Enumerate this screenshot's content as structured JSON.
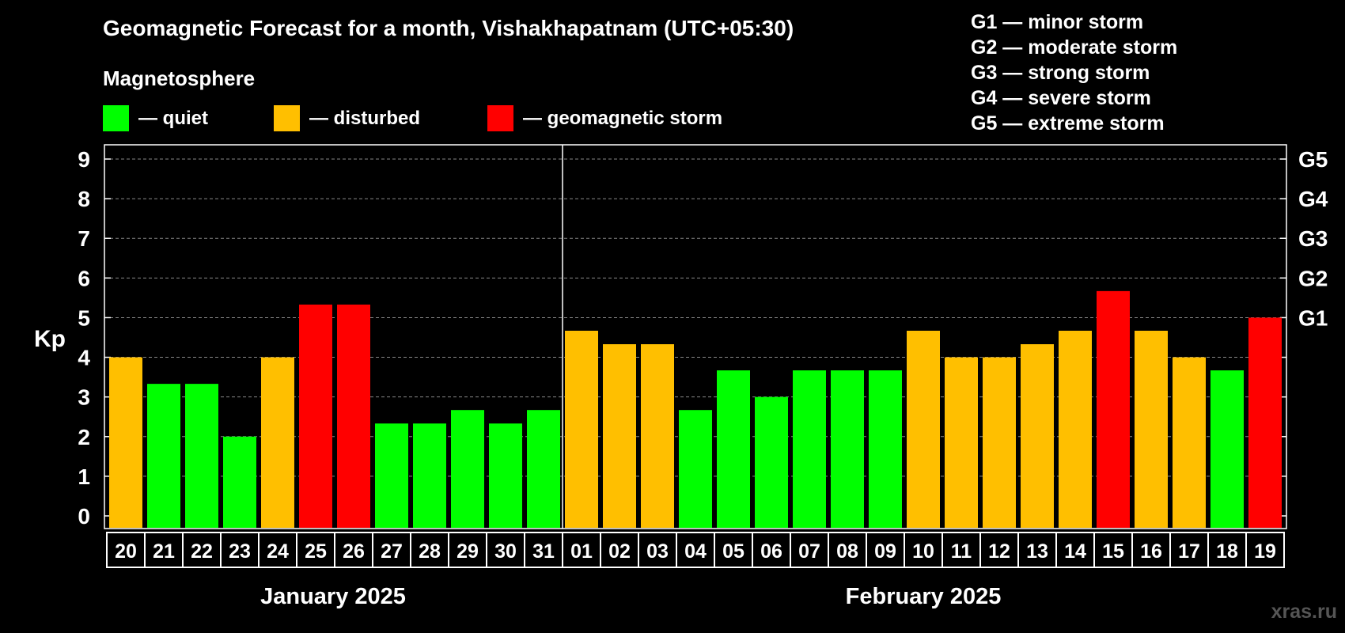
{
  "title": "Geomagnetic Forecast for a month, Vishakhapatnam (UTC+05:30)",
  "magnetosphere_label": "Magnetosphere",
  "legend": [
    {
      "label": "— quiet",
      "color": "#00ff00"
    },
    {
      "label": "— disturbed",
      "color": "#ffbf00"
    },
    {
      "label": "— geomagnetic storm",
      "color": "#ff0000"
    }
  ],
  "storm_scale": [
    "G1 — minor storm",
    "G2 — moderate storm",
    "G3 — strong storm",
    "G4 — severe storm",
    "G5 — extreme storm"
  ],
  "watermark": "xras.ru",
  "chart_data": {
    "type": "bar",
    "ylabel": "Kp",
    "ylim": [
      0,
      9
    ],
    "yticks": [
      "0",
      "1",
      "2",
      "3",
      "4",
      "5",
      "6",
      "7",
      "8",
      "9"
    ],
    "right_axis_labels": [
      {
        "value": 5,
        "label": "G1"
      },
      {
        "value": 6,
        "label": "G2"
      },
      {
        "value": 7,
        "label": "G3"
      },
      {
        "value": 8,
        "label": "G4"
      },
      {
        "value": 9,
        "label": "G5"
      }
    ],
    "grid": "dashed horizontal",
    "month_labels": [
      "January 2025",
      "February 2025"
    ],
    "categories": [
      "20",
      "21",
      "22",
      "23",
      "24",
      "25",
      "26",
      "27",
      "28",
      "29",
      "30",
      "31",
      "01",
      "02",
      "03",
      "04",
      "05",
      "06",
      "07",
      "08",
      "09",
      "10",
      "11",
      "12",
      "13",
      "14",
      "15",
      "16",
      "17",
      "18",
      "19"
    ],
    "values": [
      4.0,
      3.33,
      3.33,
      2.0,
      4.0,
      5.33,
      5.33,
      2.33,
      2.33,
      2.67,
      2.33,
      2.67,
      4.67,
      4.33,
      4.33,
      2.67,
      3.67,
      3.0,
      3.67,
      3.67,
      3.67,
      4.67,
      4.0,
      4.0,
      4.33,
      4.67,
      5.67,
      4.67,
      4.0,
      3.67,
      5.0
    ],
    "status": [
      "disturbed",
      "quiet",
      "quiet",
      "quiet",
      "disturbed",
      "storm",
      "storm",
      "quiet",
      "quiet",
      "quiet",
      "quiet",
      "quiet",
      "disturbed",
      "disturbed",
      "disturbed",
      "quiet",
      "quiet",
      "quiet",
      "quiet",
      "quiet",
      "quiet",
      "disturbed",
      "disturbed",
      "disturbed",
      "disturbed",
      "disturbed",
      "storm",
      "disturbed",
      "disturbed",
      "quiet",
      "storm"
    ],
    "colors": {
      "quiet": "#00ff00",
      "disturbed": "#ffbf00",
      "storm": "#ff0000"
    }
  }
}
